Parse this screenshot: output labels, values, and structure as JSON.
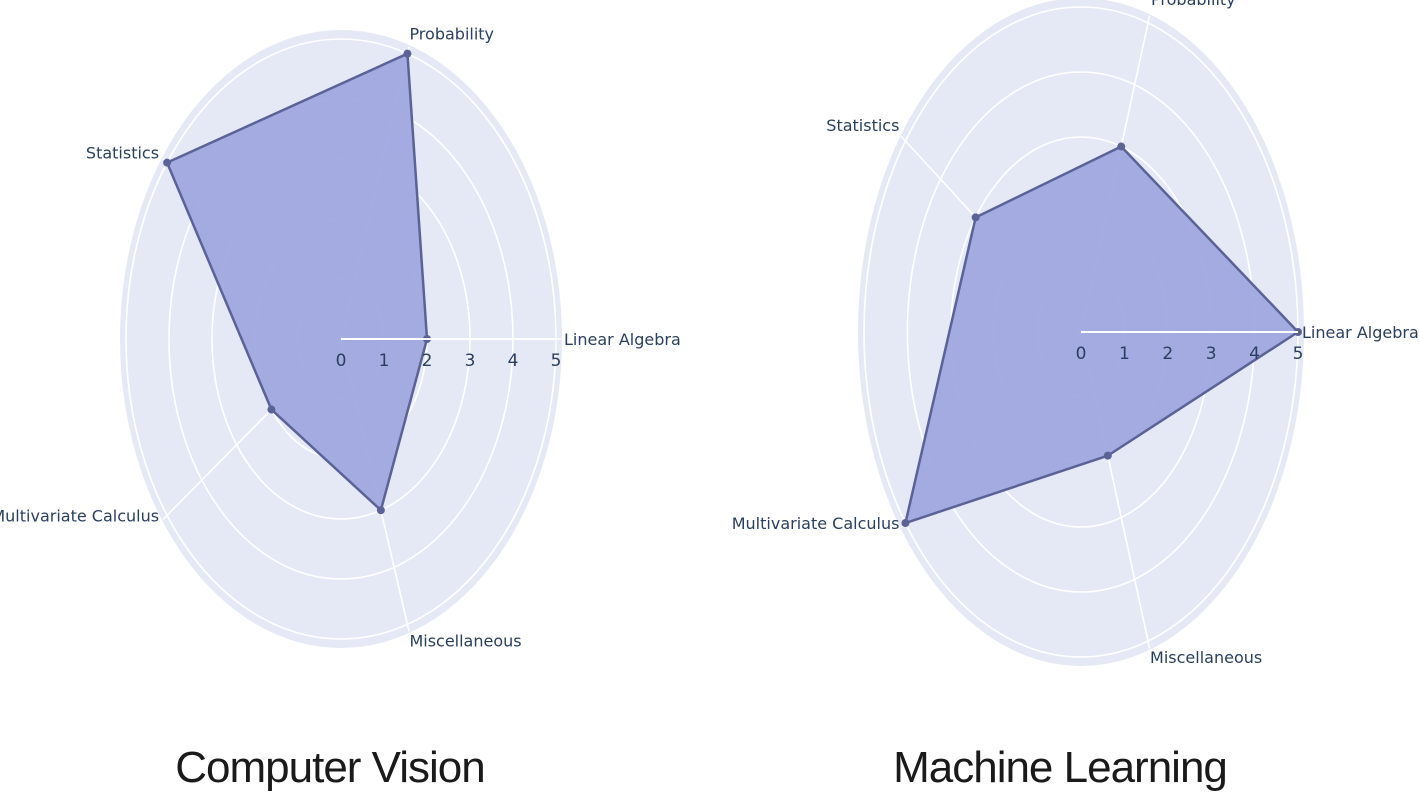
{
  "chart_data": [
    {
      "type": "radar",
      "title": "Computer Vision",
      "axes": [
        "Linear Algebra",
        "Probability",
        "Statistics",
        "Multivariate Calculus",
        "Miscellaneous"
      ],
      "values": [
        2,
        5,
        5,
        2,
        3
      ],
      "radial_range": [
        0,
        5
      ],
      "radial_ticks": [
        "0",
        "1",
        "2",
        "3",
        "4",
        "5"
      ],
      "grid": true,
      "fill_color": "#a0a8df",
      "line_color": "#5b6296",
      "background_color": "#e5e9f6"
    },
    {
      "type": "radar",
      "title": "Machine Learning",
      "axes": [
        "Linear Algebra",
        "Probability",
        "Statistics",
        "Multivariate Calculus",
        "Miscellaneous"
      ],
      "values": [
        5,
        3,
        3,
        5,
        2
      ],
      "radial_range": [
        0,
        5
      ],
      "radial_ticks": [
        "0",
        "1",
        "2",
        "3",
        "4",
        "5"
      ],
      "grid": true,
      "fill_color": "#a0a8df",
      "line_color": "#5b6296",
      "background_color": "#e5e9f6"
    }
  ]
}
